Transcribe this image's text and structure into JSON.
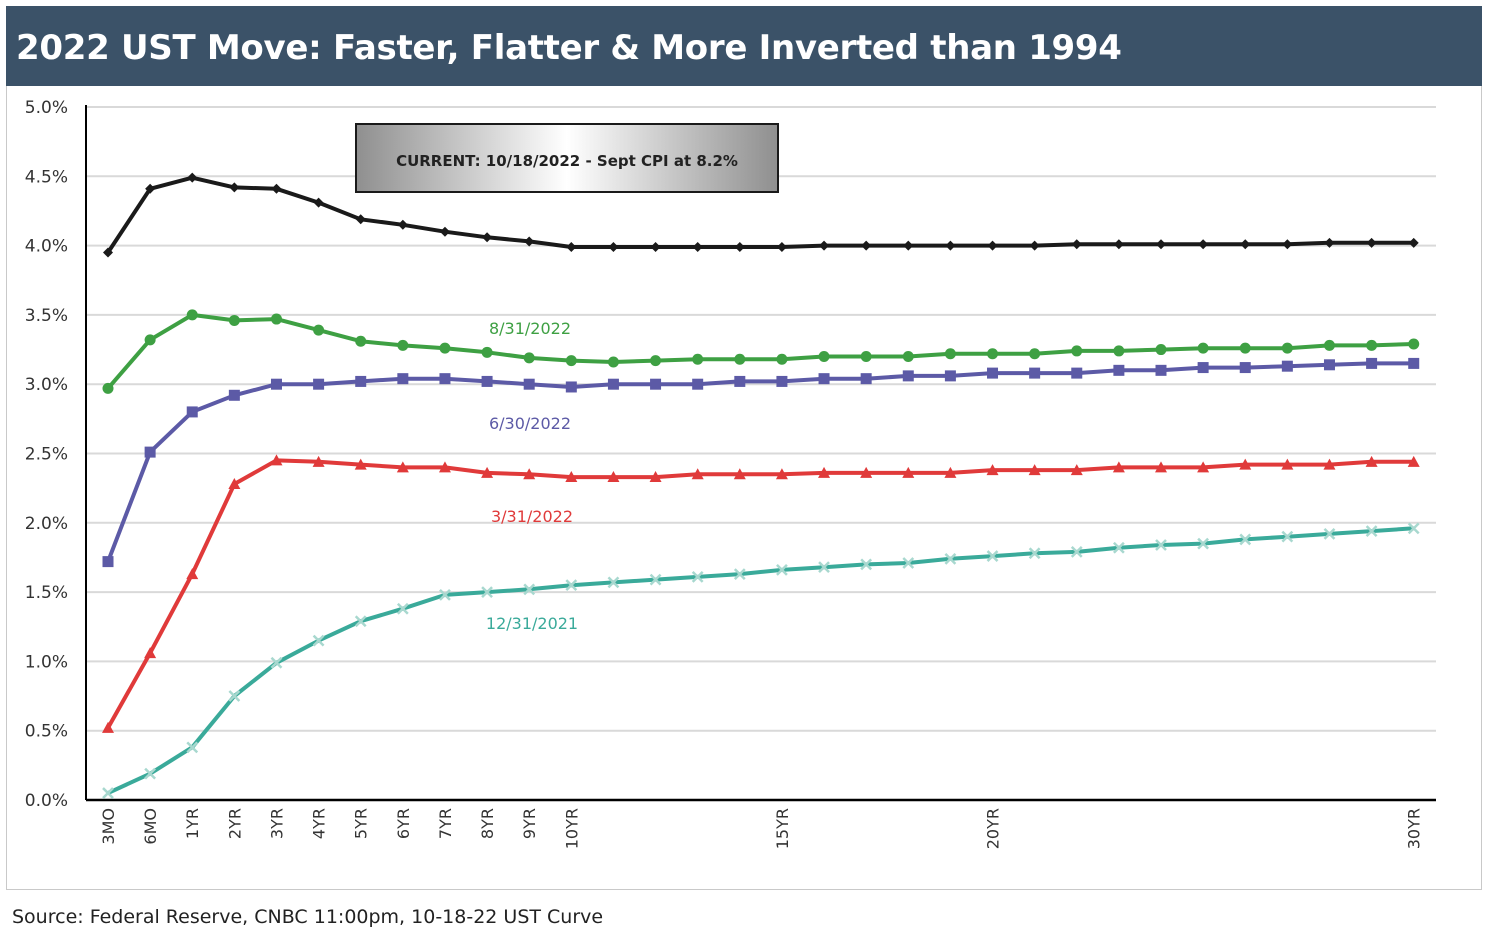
{
  "header": {
    "title": "2022 UST Move: Faster, Flatter & More Inverted than 1994"
  },
  "footer": {
    "source": "Source: Federal Reserve, CNBC 11:00pm, 10-18-22 UST Curve"
  },
  "chart_data": {
    "type": "line",
    "title": "2022 UST Move: Faster, Flatter & More Inverted than 1994",
    "xlabel": "",
    "ylabel": "",
    "ylim": [
      0,
      5
    ],
    "y_ticks": [
      "0.0%",
      "0.5%",
      "1.0%",
      "1.5%",
      "2.0%",
      "2.5%",
      "3.0%",
      "3.5%",
      "4.0%",
      "4.5%",
      "5.0%"
    ],
    "grid": "horizontal",
    "x_tick_labels": [
      {
        "label": "3MO",
        "index": 0
      },
      {
        "label": "6MO",
        "index": 1
      },
      {
        "label": "1YR",
        "index": 2
      },
      {
        "label": "2YR",
        "index": 3
      },
      {
        "label": "3YR",
        "index": 4
      },
      {
        "label": "4YR",
        "index": 5
      },
      {
        "label": "5YR",
        "index": 6
      },
      {
        "label": "6YR",
        "index": 7
      },
      {
        "label": "7YR",
        "index": 8
      },
      {
        "label": "8YR",
        "index": 9
      },
      {
        "label": "9YR",
        "index": 10
      },
      {
        "label": "10YR",
        "index": 11
      },
      {
        "label": "15YR",
        "index": 16
      },
      {
        "label": "20YR",
        "index": 21
      },
      {
        "label": "30YR",
        "index": 31
      }
    ],
    "annotation": "CURRENT: 10/18/2022  - Sept CPI at 8.2%",
    "series": [
      {
        "name": "CURRENT: 10/18/2022",
        "color": "#1a1a1a",
        "marker": "diamond",
        "values": [
          3.95,
          4.41,
          4.49,
          4.42,
          4.41,
          4.31,
          4.19,
          4.15,
          4.1,
          4.06,
          4.03,
          3.99,
          3.99,
          3.99,
          3.99,
          3.99,
          3.99,
          4.0,
          4.0,
          4.0,
          4.0,
          4.0,
          4.0,
          4.01,
          4.01,
          4.01,
          4.01,
          4.01,
          4.01,
          4.02,
          4.02,
          4.02
        ]
      },
      {
        "name": "8/31/2022",
        "color": "#3ea043",
        "marker": "circle",
        "values": [
          2.97,
          3.32,
          3.5,
          3.46,
          3.47,
          3.39,
          3.31,
          3.28,
          3.26,
          3.23,
          3.19,
          3.17,
          3.16,
          3.17,
          3.18,
          3.18,
          3.18,
          3.2,
          3.2,
          3.2,
          3.22,
          3.22,
          3.22,
          3.24,
          3.24,
          3.25,
          3.26,
          3.26,
          3.26,
          3.28,
          3.28,
          3.29
        ]
      },
      {
        "name": "6/30/2022",
        "color": "#5c5aa6",
        "marker": "square",
        "values": [
          1.72,
          2.51,
          2.8,
          2.92,
          3.0,
          3.0,
          3.02,
          3.04,
          3.04,
          3.02,
          3.0,
          2.98,
          3.0,
          3.0,
          3.0,
          3.02,
          3.02,
          3.04,
          3.04,
          3.06,
          3.06,
          3.08,
          3.08,
          3.08,
          3.1,
          3.1,
          3.12,
          3.12,
          3.13,
          3.14,
          3.15,
          3.15
        ]
      },
      {
        "name": "3/31/2022",
        "color": "#e03a3a",
        "marker": "triangle",
        "values": [
          0.52,
          1.06,
          1.63,
          2.28,
          2.45,
          2.44,
          2.42,
          2.4,
          2.4,
          2.36,
          2.35,
          2.33,
          2.33,
          2.33,
          2.35,
          2.35,
          2.35,
          2.36,
          2.36,
          2.36,
          2.36,
          2.38,
          2.38,
          2.38,
          2.4,
          2.4,
          2.4,
          2.42,
          2.42,
          2.42,
          2.44,
          2.44
        ]
      },
      {
        "name": "12/31/2021",
        "color": "#3aaa9a",
        "marker": "x",
        "values": [
          0.05,
          0.19,
          0.38,
          0.75,
          0.99,
          1.15,
          1.29,
          1.38,
          1.48,
          1.5,
          1.52,
          1.55,
          1.57,
          1.59,
          1.61,
          1.63,
          1.66,
          1.68,
          1.7,
          1.71,
          1.74,
          1.76,
          1.78,
          1.79,
          1.82,
          1.84,
          1.85,
          1.88,
          1.9,
          1.92,
          1.94,
          1.96
        ]
      }
    ],
    "series_labels": [
      "8/31/2022",
      "6/30/2022",
      "3/31/2022",
      "12/31/2021"
    ]
  }
}
